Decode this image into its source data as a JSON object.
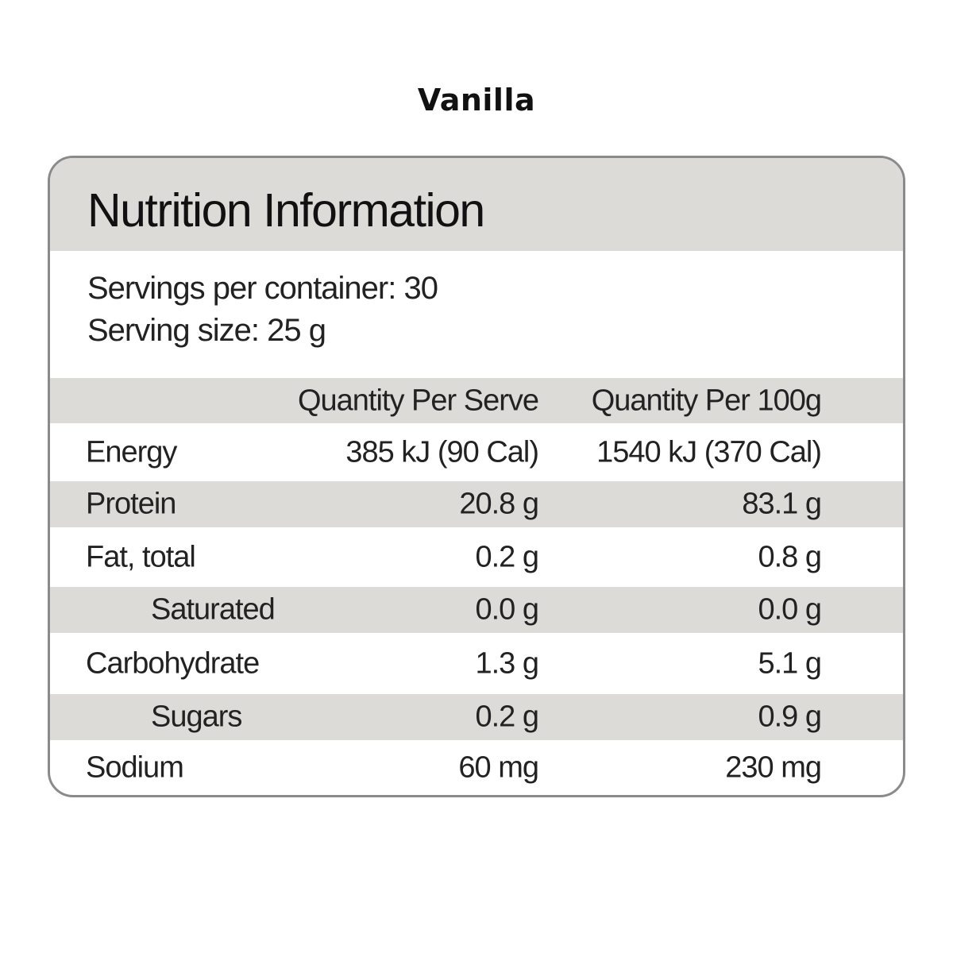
{
  "flavor": "Vanilla",
  "panel": {
    "title": "Nutrition Information",
    "servings_per_container": "Servings per container: 30",
    "serving_size": "Serving size: 25 g",
    "columns": [
      "Quantity Per Serve",
      "Quantity Per 100g"
    ],
    "rows": [
      {
        "label": "Energy",
        "per_serve": "385 kJ (90 Cal)",
        "per_100g": "1540 kJ (370 Cal)"
      },
      {
        "label": "Protein",
        "per_serve": "20.8 g",
        "per_100g": "83.1 g"
      },
      {
        "label": "Fat, total",
        "per_serve": "0.2 g",
        "per_100g": "0.8 g"
      },
      {
        "label": "Saturated",
        "per_serve": "0.0 g",
        "per_100g": "0.0 g"
      },
      {
        "label": "Carbohydrate",
        "per_serve": "1.3 g",
        "per_100g": "5.1 g"
      },
      {
        "label": "Sugars",
        "per_serve": "0.2 g",
        "per_100g": "0.9 g"
      },
      {
        "label": "Sodium",
        "per_serve": "60 mg",
        "per_100g": "230 mg"
      }
    ]
  },
  "colors": {
    "band": "#dcdbd8",
    "border": "#8a8a8a",
    "text": "#1e1e1e"
  }
}
